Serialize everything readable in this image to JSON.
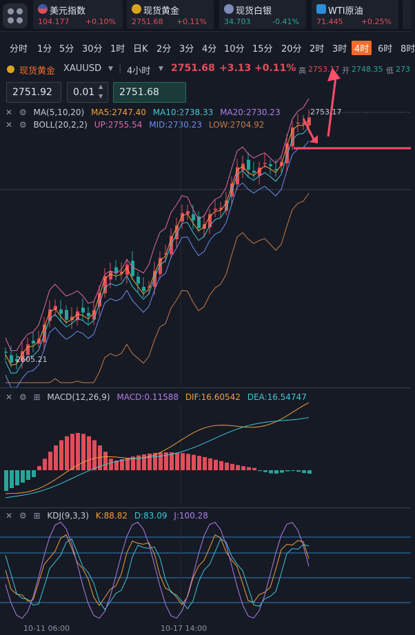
{
  "tickers": [
    {
      "name": "美元指数",
      "price": "104.177",
      "change": "+0.10%",
      "color": "#e04e5a"
    },
    {
      "name": "现货黄金",
      "price": "2751.68",
      "change": "+0.11%",
      "color": "#e04e5a"
    },
    {
      "name": "现货白银",
      "price": "34.703",
      "change": "-0.41%",
      "color": "#26a69a"
    },
    {
      "name": "WTI原油",
      "price": "71.445",
      "change": "+0.25%",
      "color": "#e04e5a"
    }
  ],
  "periods": [
    "分时",
    "1分",
    "5分",
    "30分",
    "1时",
    "日K",
    "2分",
    "3分",
    "4分",
    "10分",
    "15分",
    "20分",
    "2时",
    "3时",
    "4时",
    "6时",
    "8时"
  ],
  "active_period": "4时",
  "instrument": {
    "name": "现货黄金",
    "symbol": "XAUUSD",
    "interval": "4小时",
    "price": "2751.68",
    "change": "+3.13",
    "change_pct": "+0.11%",
    "high_label": "高",
    "high": "2753.17",
    "open_label": "开",
    "open": "2748.35",
    "low_label": "低",
    "low": "273"
  },
  "order": {
    "sell_price": "2751.92",
    "lots": "0.01",
    "buy_price": "2751.68"
  },
  "indicators": {
    "ma": {
      "name": "MA(5,10,20)",
      "ma5": "MA5:2747.40",
      "ma10": "MA10:2738.33",
      "ma20": "MA20:2730.23"
    },
    "boll": {
      "name": "BOLL(20,2,2)",
      "up": "UP:2755.54",
      "mid": "MID:2730.23",
      "low": "LOW:2704.92"
    },
    "macd": {
      "name": "MACD(12,26,9)",
      "macd": "MACD:0.11588",
      "dif": "DIF:16.60542",
      "dea": "DEA:16.54747"
    },
    "kdj": {
      "name": "KDJ(9,3,3)",
      "k": "K:88.82",
      "d": "D:83.09",
      "j": "J:100.28"
    }
  },
  "chart_labels": {
    "high_mark": "2753.17",
    "low_mark": "2605.21"
  },
  "time_labels": [
    "10-11 06:00",
    "10-17 14:00"
  ],
  "colors": {
    "up": "#e04e5a",
    "down": "#26a69a",
    "accent": "#f26c2c",
    "arrow": "#ff4d6a"
  }
}
